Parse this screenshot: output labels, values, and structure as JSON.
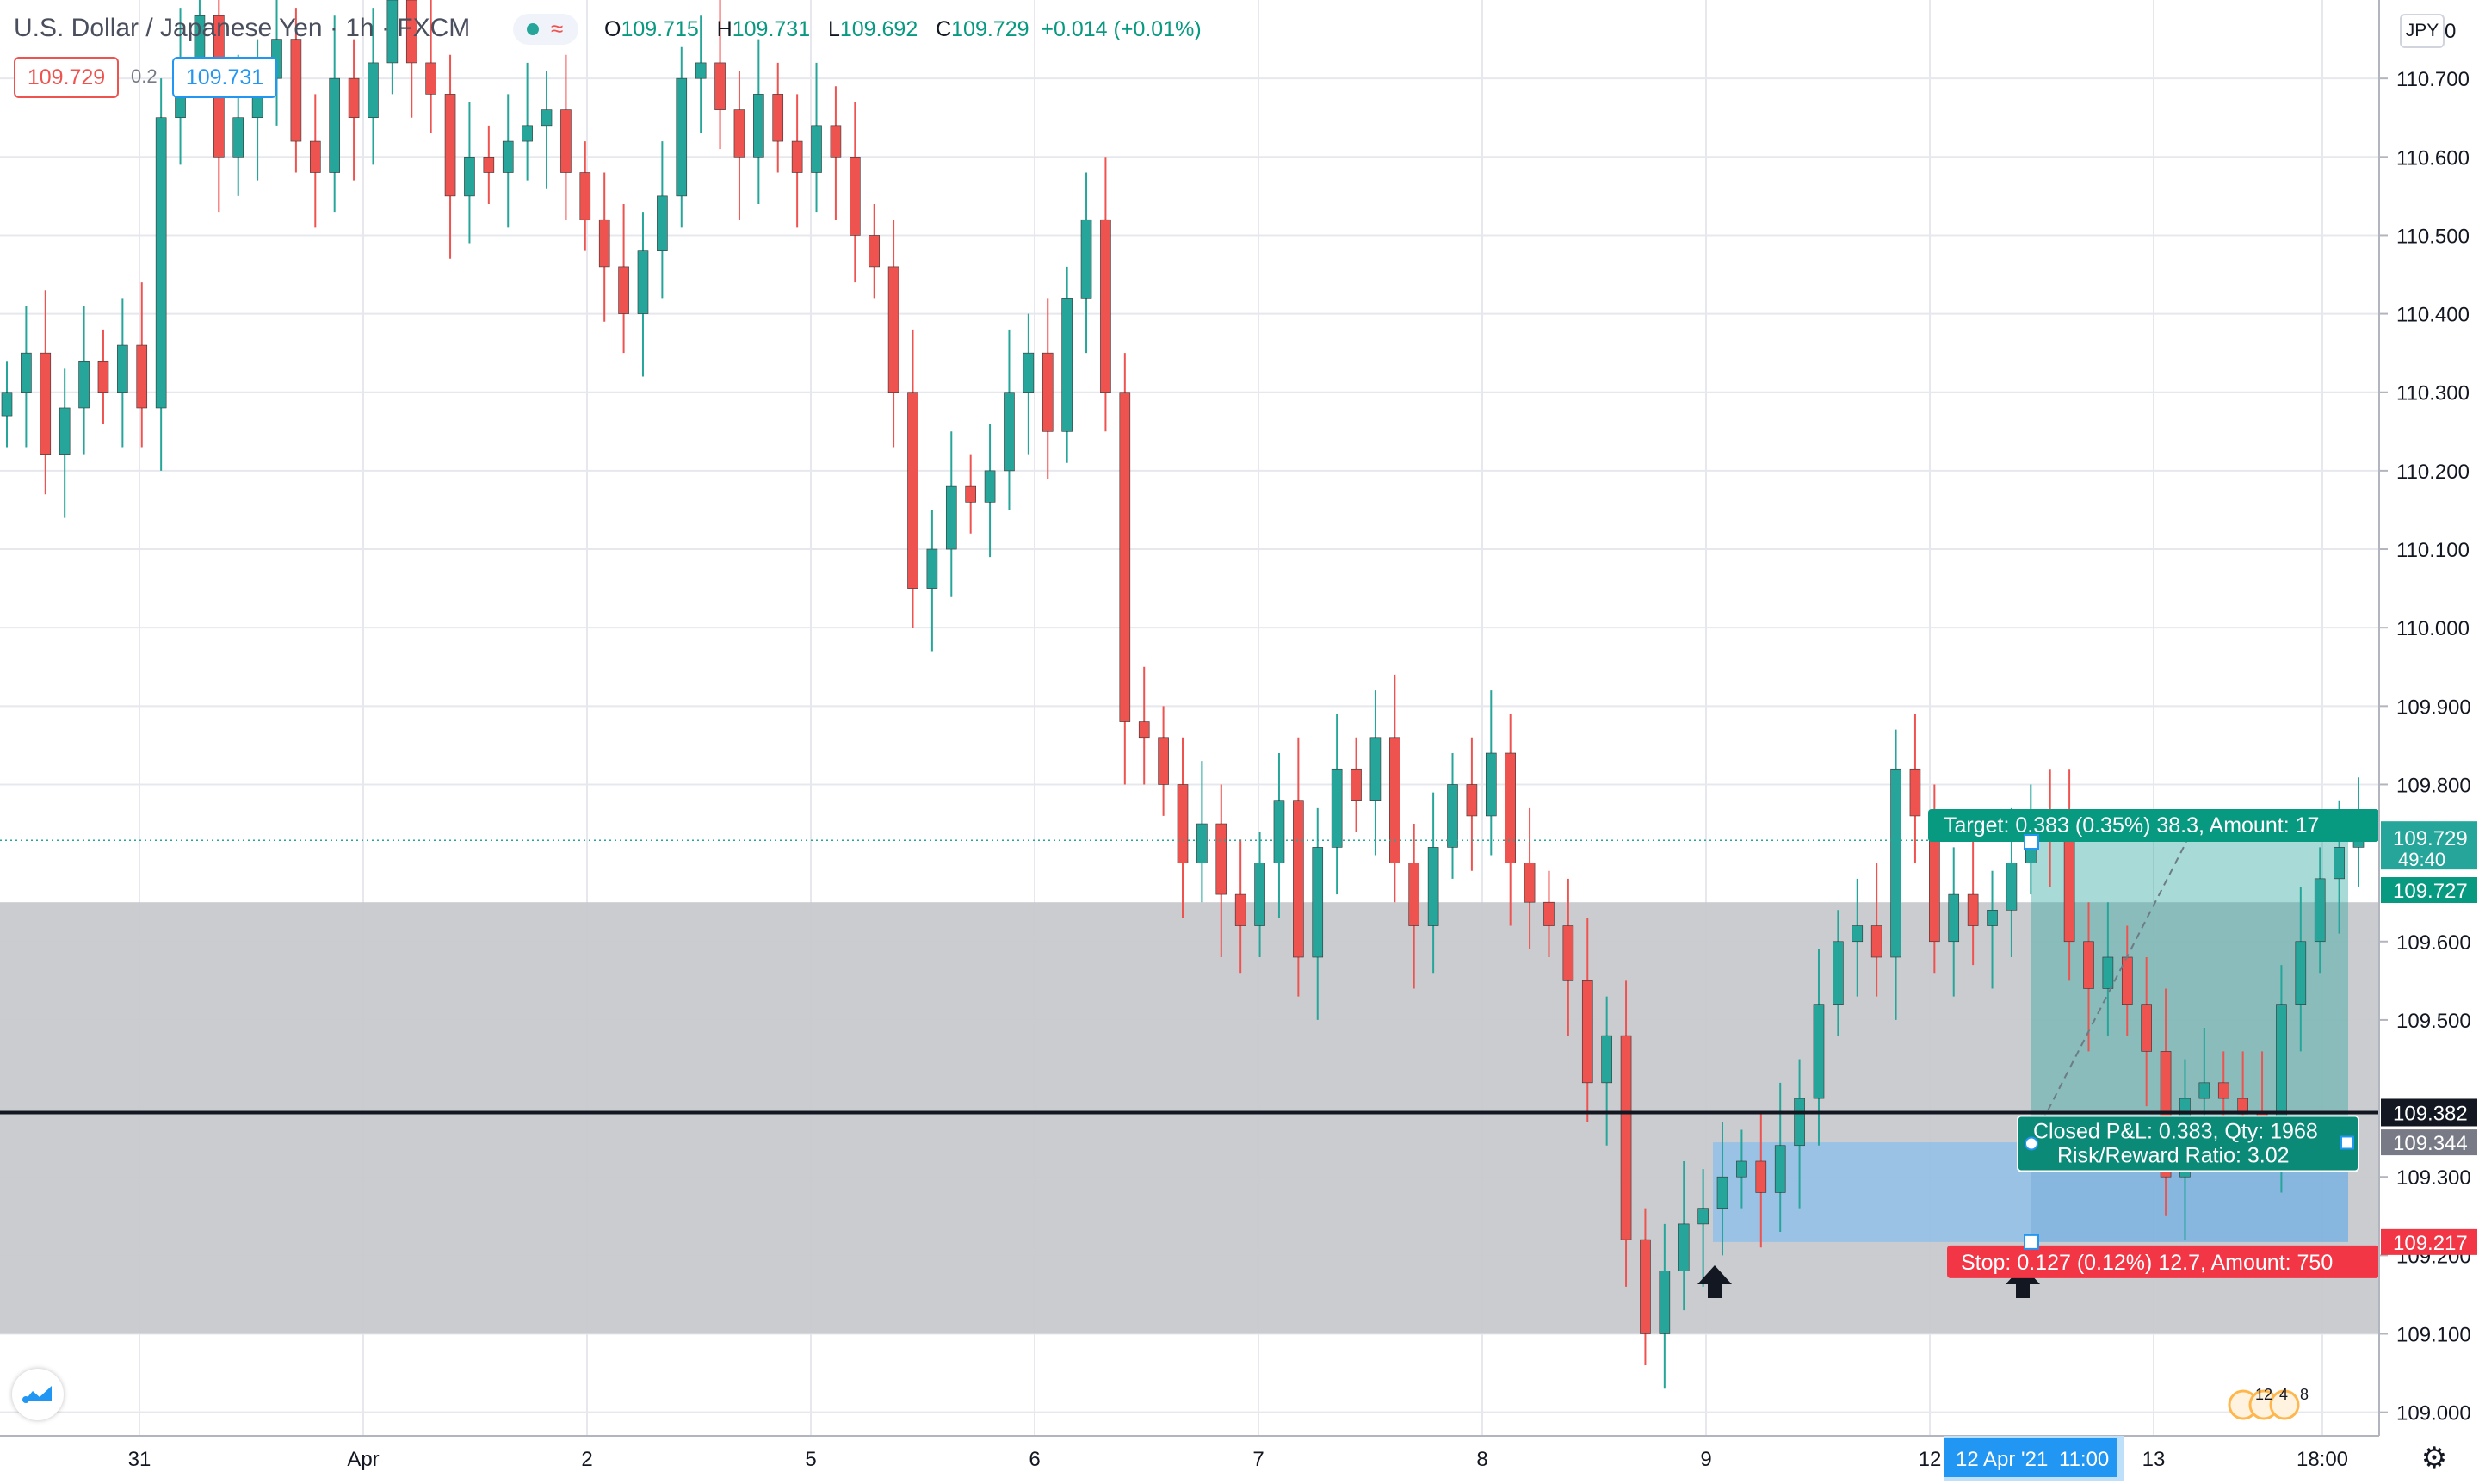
{
  "header": {
    "symbol": "U.S. Dollar / Japanese Yen · 1h · FXCM",
    "open_label": "O",
    "open": "109.715",
    "high_label": "H",
    "high": "109.731",
    "low_label": "L",
    "low": "109.692",
    "close_label": "C",
    "close": "109.729",
    "change": "+0.014 (+0.01%)",
    "sell_price": "109.729",
    "spread": "0.2",
    "buy_price": "109.731"
  },
  "currency_badge": "JPY",
  "price_axis": {
    "top_partial": "0",
    "ticks": [
      "110.700",
      "110.600",
      "110.500",
      "110.400",
      "110.300",
      "110.200",
      "110.100",
      "110.000",
      "109.900",
      "109.800",
      "109.600",
      "109.500",
      "109.300",
      "109.200",
      "109.100",
      "109.000"
    ],
    "current_price": "109.729",
    "countdown": "49:40",
    "target_label": "109.727",
    "hline_label": "109.382",
    "entry_label": "109.344",
    "stop_label": "109.217"
  },
  "time_axis": {
    "labels": [
      "31",
      "Apr",
      "2",
      "5",
      "6",
      "7",
      "8",
      "9",
      "12",
      "13",
      "18:00"
    ],
    "crosshair_date": "12 Apr '21",
    "crosshair_time": "11:00"
  },
  "position_tool": {
    "target_text": "Target: 0.383 (0.35%) 38.3, Amount: 17",
    "stop_text": "Stop: 0.127 (0.12%) 12.7, Amount: 750",
    "pnl_text": "Closed P&L: 0.383, Qty: 1968",
    "rr_text": "Risk/Reward Ratio: 3.02"
  },
  "events": [
    "12",
    "4",
    "8"
  ],
  "colors": {
    "up": "#26a69a",
    "down": "#ef5350",
    "zone": "#c8c9cd",
    "profit": "#26a69a",
    "loss": "#2196f3",
    "line": "#131722",
    "stop_label_bg": "#f23645",
    "target_label_bg": "#089981"
  },
  "icons": [
    "tradingview-logo-icon",
    "settings-gear-icon",
    "arrow-up-icon",
    "calendar-events-icon"
  ],
  "chart_data": {
    "type": "candlestick",
    "symbol": "USDJPY",
    "timeframe": "1h",
    "ylim": [
      108.97,
      110.8
    ],
    "x": [
      "31",
      "Apr",
      "2",
      "5",
      "6",
      "7",
      "8",
      "9",
      "12",
      "13",
      "18:00"
    ],
    "levels": {
      "resistance_zone": [
        109.1,
        109.65
      ],
      "horizontal_line": 109.382,
      "entry": 109.344,
      "target": 109.727,
      "stop": 109.217,
      "last_price": 109.729
    },
    "ohlc_closes": [
      110.3,
      110.35,
      110.22,
      110.28,
      110.34,
      110.3,
      110.36,
      110.28,
      110.65,
      110.72,
      110.78,
      110.6,
      110.65,
      110.7,
      110.75,
      110.62,
      110.58,
      110.7,
      110.65,
      110.72,
      110.8,
      110.72,
      110.68,
      110.55,
      110.6,
      110.58,
      110.62,
      110.64,
      110.66,
      110.58,
      110.52,
      110.46,
      110.4,
      110.48,
      110.55,
      110.7,
      110.72,
      110.66,
      110.6,
      110.68,
      110.62,
      110.58,
      110.64,
      110.6,
      110.5,
      110.46,
      110.3,
      110.05,
      110.1,
      110.18,
      110.16,
      110.2,
      110.3,
      110.35,
      110.25,
      110.42,
      110.52,
      110.3,
      109.88,
      109.86,
      109.8,
      109.7,
      109.75,
      109.66,
      109.62,
      109.7,
      109.78,
      109.58,
      109.72,
      109.82,
      109.78,
      109.86,
      109.7,
      109.62,
      109.72,
      109.8,
      109.76,
      109.84,
      109.7,
      109.65,
      109.62,
      109.55,
      109.42,
      109.48,
      109.22,
      109.1,
      109.18,
      109.24,
      109.26,
      109.3,
      109.32,
      109.28,
      109.34,
      109.4,
      109.52,
      109.6,
      109.62,
      109.58,
      109.82,
      109.76,
      109.6,
      109.66,
      109.62,
      109.64,
      109.7,
      109.76,
      109.74,
      109.6,
      109.54,
      109.58,
      109.52,
      109.46,
      109.3,
      109.4,
      109.42,
      109.4,
      109.38,
      109.36,
      109.52,
      109.6,
      109.68,
      109.72,
      109.729
    ]
  }
}
